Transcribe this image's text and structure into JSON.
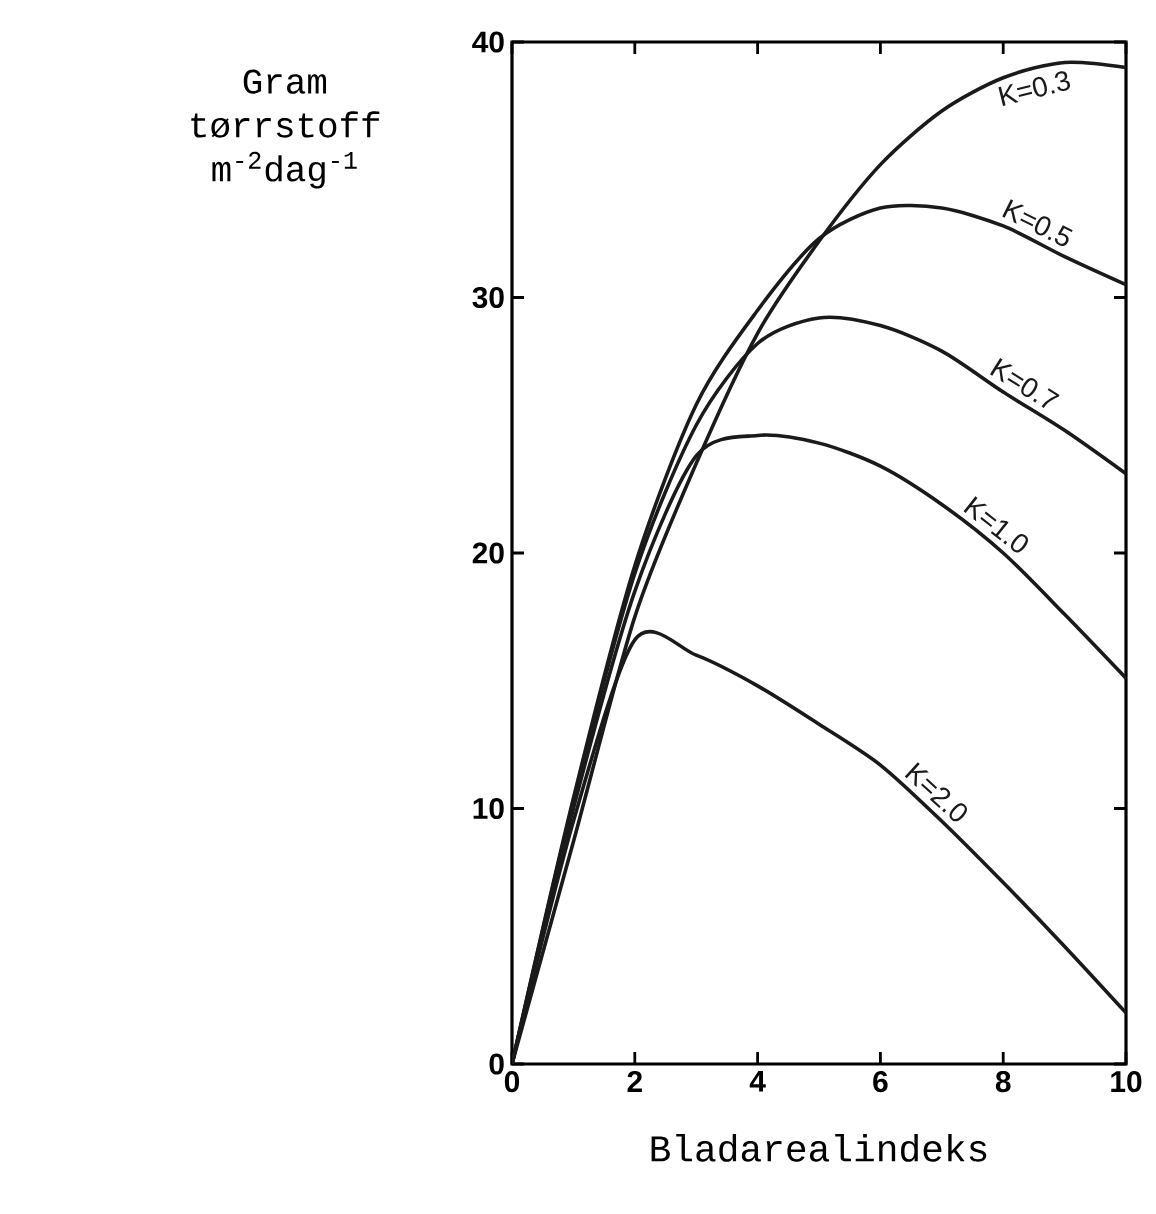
{
  "chart_data": {
    "type": "line",
    "xlabel": "Bladarealindeks",
    "ylabel": "Gram tørrstoff m$^{-2}$dag$^{-1}$",
    "x": [
      0,
      1,
      2,
      3,
      4,
      5,
      6,
      7,
      8,
      9,
      10
    ],
    "series": [
      {
        "name": "K=0.3",
        "color": "#1a1a1a",
        "values": [
          0,
          8.7,
          17.5,
          23.5,
          28.6,
          32.2,
          35.2,
          37.3,
          38.6,
          39.2,
          39.0
        ]
      },
      {
        "name": "K=0.5",
        "color": "#1a1a1a",
        "values": [
          0,
          10.4,
          19.5,
          25.8,
          29.5,
          32.3,
          33.5,
          33.5,
          32.8,
          31.6,
          30.5
        ]
      },
      {
        "name": "K=0.7",
        "color": "#1a1a1a",
        "values": [
          0,
          10.3,
          19.2,
          25.0,
          28.2,
          29.2,
          28.9,
          27.9,
          26.3,
          24.8,
          23.1
        ]
      },
      {
        "name": "K=1.0",
        "color": "#1a1a1a",
        "values": [
          0,
          10.0,
          18.5,
          23.8,
          24.6,
          24.3,
          23.4,
          21.9,
          20.0,
          17.6,
          15.1
        ]
      },
      {
        "name": "K=2.0",
        "color": "#1a1a1a",
        "values": [
          0,
          9.5,
          16.6,
          16.0,
          14.8,
          13.3,
          11.7,
          9.5,
          7.1,
          4.6,
          2.0
        ]
      }
    ],
    "xlim": [
      0,
      10
    ],
    "ylim": [
      0,
      40
    ],
    "xticks": [
      0,
      2,
      4,
      6,
      8,
      10
    ],
    "yticks": [
      0,
      10,
      20,
      30,
      40
    ]
  }
}
